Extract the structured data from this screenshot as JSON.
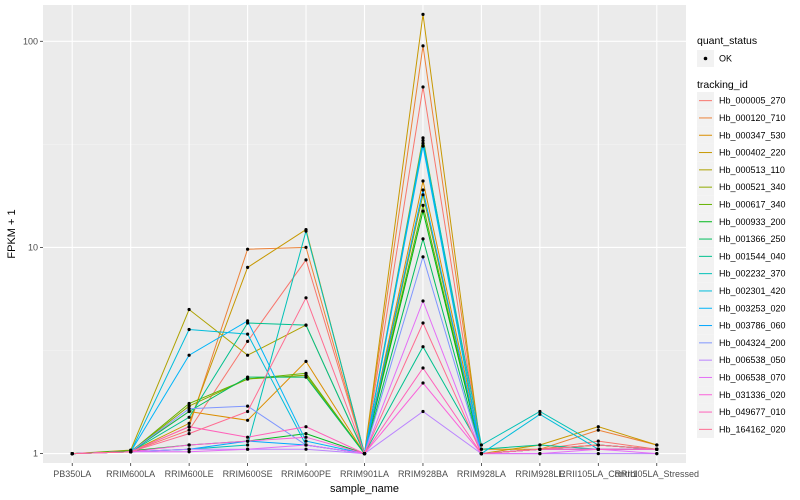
{
  "chart_data": {
    "type": "line",
    "xlabel": "sample_name",
    "ylabel": "FPKM + 1",
    "y_scale": "log10",
    "ylim": [
      0.9,
      150
    ],
    "yticks": [
      {
        "value": 1,
        "label": "1"
      },
      {
        "value": 10,
        "label": "10"
      },
      {
        "value": 100,
        "label": "100"
      }
    ],
    "categories": [
      "PB350LA",
      "RRIM600LA",
      "RRIM600LE",
      "RRIM600SE",
      "RRIM600PE",
      "RRIM901LA",
      "RRIM928BA",
      "RRIM928LA",
      "RRIM928LE",
      "RRII105LA_Control",
      "RRII105LA_Stressed"
    ],
    "category_labels": [
      "PB350LA",
      "RRIM600LA",
      "RRIM600LE",
      "RRIM600SE",
      "RRIM600PE",
      "RRIM901LA",
      "RRIM928BA",
      "RRIM928LA",
      "RRIM928LE",
      "RRII105LA_Control",
      "RRII105LA_Stressed"
    ],
    "point_legend": {
      "title": "quant_status",
      "items": [
        "OK"
      ]
    },
    "color_legend_title": "tracking_id",
    "series": [
      {
        "name": "Hb_000005_270",
        "color": "#F8766D",
        "values": [
          1.0,
          1.02,
          1.3,
          3.5,
          8.7,
          1.0,
          60,
          1.0,
          1.05,
          1.15,
          1.05
        ]
      },
      {
        "name": "Hb_000120_710",
        "color": "#EC8239",
        "values": [
          1.0,
          1.02,
          1.35,
          9.8,
          10.0,
          1.0,
          95,
          1.0,
          1.05,
          1.3,
          1.1
        ]
      },
      {
        "name": "Hb_000347_530",
        "color": "#DB8E00",
        "values": [
          1.0,
          1.03,
          1.6,
          1.45,
          2.8,
          1.0,
          21,
          1.05,
          1.05,
          1.1,
          1.05
        ]
      },
      {
        "name": "Hb_000402_220",
        "color": "#C79800",
        "values": [
          1.0,
          1.02,
          1.4,
          8.0,
          12.2,
          1.0,
          135,
          1.0,
          1.1,
          1.35,
          1.1
        ]
      },
      {
        "name": "Hb_000513_110",
        "color": "#AEA200",
        "values": [
          1.0,
          1.04,
          5.0,
          3.0,
          4.2,
          1.0,
          34,
          1.0,
          1.05,
          1.1,
          1.05
        ]
      },
      {
        "name": "Hb_000521_340",
        "color": "#8FAA00",
        "values": [
          1.0,
          1.02,
          1.7,
          2.3,
          2.4,
          1.0,
          18,
          1.0,
          1.05,
          1.1,
          1.05
        ]
      },
      {
        "name": "Hb_000617_340",
        "color": "#64B200",
        "values": [
          1.0,
          1.02,
          1.75,
          2.3,
          2.45,
          1.0,
          16,
          1.0,
          1.05,
          1.05,
          1.05
        ]
      },
      {
        "name": "Hb_000933_200",
        "color": "#00B81B",
        "values": [
          1.0,
          1.03,
          1.1,
          1.15,
          1.25,
          1.0,
          15,
          1.0,
          1.05,
          1.05,
          1.05
        ]
      },
      {
        "name": "Hb_001366_250",
        "color": "#00BD5C",
        "values": [
          1.0,
          1.02,
          1.6,
          2.35,
          2.35,
          1.0,
          11,
          1.0,
          1.05,
          1.05,
          1.05
        ]
      },
      {
        "name": "Hb_001544_040",
        "color": "#00C08E",
        "values": [
          1.0,
          1.02,
          1.5,
          4.3,
          4.2,
          1.0,
          3.3,
          1.05,
          1.1,
          1.05,
          1.05
        ]
      },
      {
        "name": "Hb_002232_370",
        "color": "#00C1B7",
        "values": [
          1.0,
          1.02,
          1.05,
          1.1,
          12.0,
          1.0,
          33,
          1.1,
          1.6,
          1.1,
          1.05
        ]
      },
      {
        "name": "Hb_002301_420",
        "color": "#00BDDC",
        "values": [
          1.0,
          1.02,
          4.0,
          3.8,
          1.1,
          1.0,
          32,
          1.0,
          1.55,
          1.05,
          1.05
        ]
      },
      {
        "name": "Hb_003253_020",
        "color": "#00B5F9",
        "values": [
          1.0,
          1.02,
          3.0,
          4.4,
          1.15,
          1.0,
          31,
          1.0,
          1.05,
          1.05,
          1.05
        ]
      },
      {
        "name": "Hb_003786_060",
        "color": "#00A6FF",
        "values": [
          1.0,
          1.02,
          1.05,
          1.15,
          1.1,
          1.0,
          19,
          1.0,
          1.05,
          1.05,
          1.05
        ]
      },
      {
        "name": "Hb_004324_200",
        "color": "#7F96FF",
        "values": [
          1.0,
          1.02,
          1.65,
          1.7,
          1.1,
          1.0,
          9.0,
          1.0,
          1.05,
          1.05,
          1.05
        ]
      },
      {
        "name": "Hb_006538_050",
        "color": "#BB83FF",
        "values": [
          1.0,
          1.02,
          1.05,
          1.05,
          1.05,
          1.0,
          1.6,
          1.0,
          1.0,
          1.0,
          1.0
        ]
      },
      {
        "name": "Hb_006538_070",
        "color": "#E46DF6",
        "values": [
          1.0,
          1.02,
          1.02,
          1.05,
          1.1,
          1.0,
          5.5,
          1.0,
          1.0,
          1.05,
          1.0
        ]
      },
      {
        "name": "Hb_031336_020",
        "color": "#FA62DB",
        "values": [
          1.0,
          1.02,
          1.1,
          1.15,
          1.2,
          1.0,
          2.2,
          1.0,
          1.05,
          1.05,
          1.05
        ]
      },
      {
        "name": "Hb_049677_010",
        "color": "#FF62BA",
        "values": [
          1.0,
          1.02,
          1.35,
          1.2,
          1.35,
          1.0,
          2.6,
          1.0,
          1.05,
          1.05,
          1.05
        ]
      },
      {
        "name": "Hb_164162_020",
        "color": "#FF6C91",
        "values": [
          1.0,
          1.02,
          1.25,
          1.6,
          5.7,
          1.0,
          4.3,
          1.0,
          1.05,
          1.1,
          1.05
        ]
      }
    ]
  }
}
